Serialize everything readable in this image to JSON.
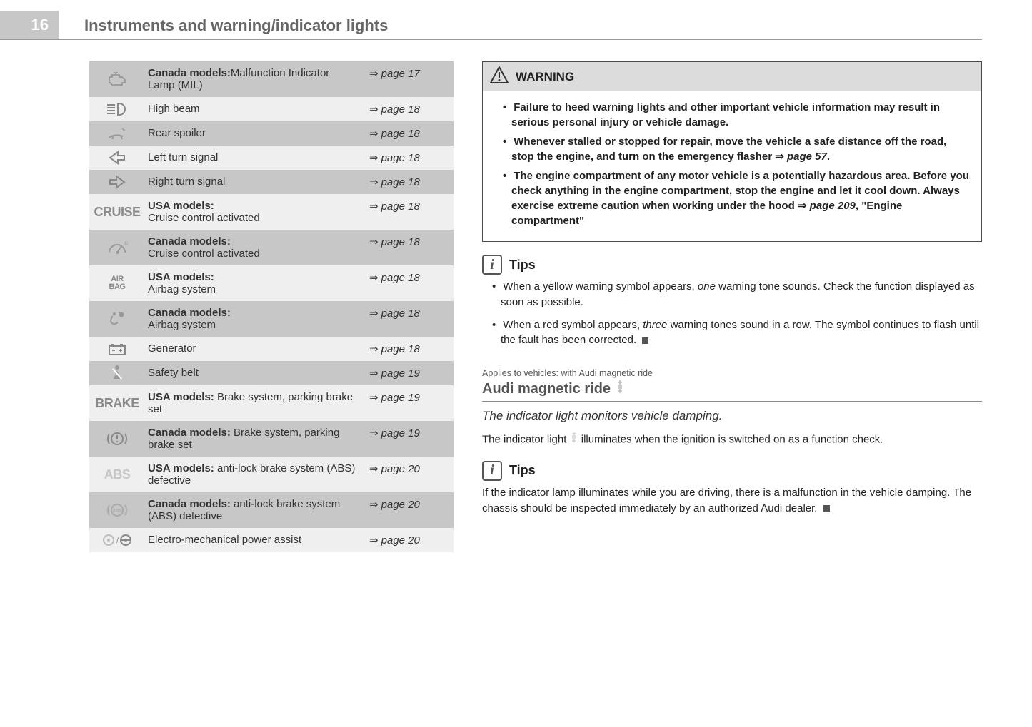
{
  "page_number": "16",
  "page_title": "Instruments and warning/indicator lights",
  "indicator_table": {
    "rows": [
      {
        "icon": "engine-icon",
        "desc_bold": "Canada models:",
        "desc_rest": "Malfunction Indicator Lamp (MIL)",
        "ref": "page 17",
        "alt": true
      },
      {
        "icon": "highbeam-icon",
        "desc_bold": "",
        "desc_rest": "High beam",
        "ref": "page 18",
        "alt": false
      },
      {
        "icon": "spoiler-icon",
        "desc_bold": "",
        "desc_rest": "Rear spoiler",
        "ref": "page 18",
        "alt": true
      },
      {
        "icon": "left-arrow-icon",
        "desc_bold": "",
        "desc_rest": "Left turn signal",
        "ref": "page 18",
        "alt": false
      },
      {
        "icon": "right-arrow-icon",
        "desc_bold": "",
        "desc_rest": "Right turn signal",
        "ref": "page 18",
        "alt": true
      },
      {
        "icon": "cruise-text-icon",
        "desc_bold": "USA models:",
        "desc_rest": " Cruise control activated",
        "ref": "page 18",
        "alt": false,
        "desc_break": true
      },
      {
        "icon": "cruise-gauge-icon",
        "desc_bold": "Canada models:",
        "desc_rest": " Cruise control activated",
        "ref": "page 18",
        "alt": true,
        "desc_break": true
      },
      {
        "icon": "airbag-text-icon",
        "desc_bold": "USA models:",
        "desc_rest": " Airbag system",
        "ref": "page 18",
        "alt": false,
        "desc_break": true
      },
      {
        "icon": "airbag-person-icon",
        "desc_bold": "Canada models:",
        "desc_rest": " Airbag system",
        "ref": "page 18",
        "alt": true,
        "desc_break": true
      },
      {
        "icon": "battery-icon",
        "desc_bold": "",
        "desc_rest": "Generator",
        "ref": "page 18",
        "alt": false
      },
      {
        "icon": "seatbelt-icon",
        "desc_bold": "",
        "desc_rest": "Safety belt",
        "ref": "page 19",
        "alt": true
      },
      {
        "icon": "brake-text-icon",
        "desc_bold": "USA models:",
        "desc_rest": " Brake system, parking brake set",
        "ref": "page 19",
        "alt": false
      },
      {
        "icon": "brake-circle-icon",
        "desc_bold": "Canada models:",
        "desc_rest": " Brake system, parking brake set",
        "ref": "page 19",
        "alt": true
      },
      {
        "icon": "abs-text-icon",
        "desc_bold": "USA models:",
        "desc_rest": " anti-lock brake system (ABS) defective",
        "ref": "page 20",
        "alt": false
      },
      {
        "icon": "abs-circle-icon",
        "desc_bold": "Canada models:",
        "desc_rest": " anti-lock brake system (ABS) defective",
        "ref": "page 20",
        "alt": true
      },
      {
        "icon": "steering-icon",
        "desc_bold": "",
        "desc_rest": "Electro-mechanical power assist",
        "ref": "page 20",
        "alt": false
      }
    ]
  },
  "warning": {
    "header": "WARNING",
    "bullets": [
      {
        "pre": "Failure to heed warning lights and other important vehicle information may result in serious personal injury or vehicle damage.",
        "ref": ""
      },
      {
        "pre": "Whenever stalled or stopped for repair, move the vehicle a safe distance off the road, stop the engine, and turn on the emergency flasher ",
        "ref": "page 57",
        "post": "."
      },
      {
        "pre": "The engine compartment of any motor vehicle is a potentially hazardous area. Before you check anything in the engine compartment, stop the engine and let it cool down. Always exercise extreme caution when working under the hood ",
        "ref": "page 209",
        "post": ", \"Engine compartment\""
      }
    ]
  },
  "tips1": {
    "header": "Tips",
    "bullets": [
      "When a yellow warning symbol appears, <i>one</i> warning tone sounds. Check the function displayed as soon as possible.",
      "When a red symbol appears, <i>three</i> warning tones sound in a row. The symbol continues to flash until the fault has been corrected."
    ]
  },
  "section": {
    "applies": "Applies to vehicles: with Audi magnetic ride",
    "title": "Audi magnetic ride",
    "subtitle": "The indicator light monitors vehicle damping.",
    "body": "The indicator light  illuminates when the ignition is switched on as a function check."
  },
  "tips2": {
    "header": "Tips",
    "body": "If the indicator lamp illuminates while you are driving, there is a malfunction in the vehicle damping. The chassis should be inspected immediately by an authorized Audi dealer."
  }
}
